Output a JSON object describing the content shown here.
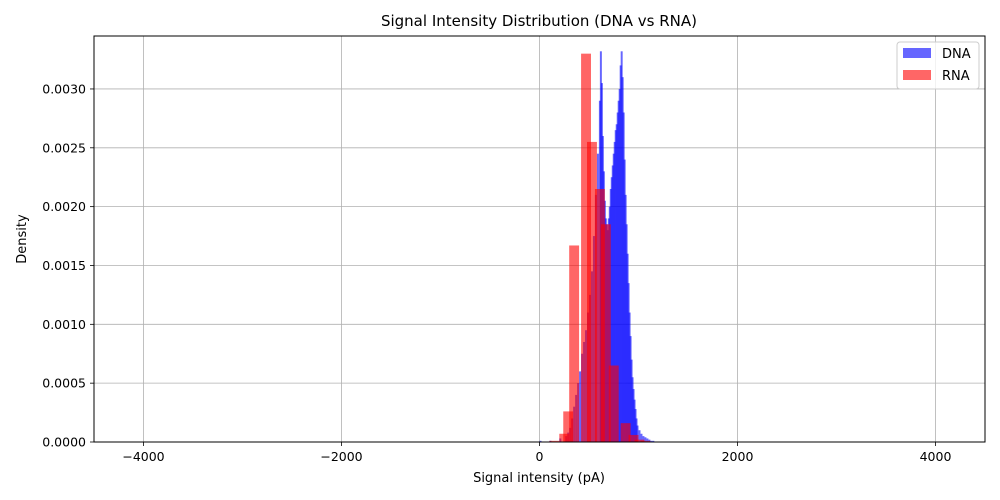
{
  "chart_data": {
    "type": "bar",
    "title": "Signal Intensity Distribution (DNA vs RNA)",
    "xlabel": "Signal intensity (pA)",
    "ylabel": "Density",
    "xlim": [
      -4500,
      4500
    ],
    "ylim": [
      0,
      0.00345
    ],
    "x_ticks": [
      -4000,
      -2000,
      0,
      2000,
      4000
    ],
    "x_tick_labels": [
      "−4000",
      "−2000",
      "0",
      "2000",
      "4000"
    ],
    "y_ticks": [
      0,
      0.0005,
      0.001,
      0.0015,
      0.002,
      0.0025,
      0.003
    ],
    "y_tick_labels": [
      "0.0000",
      "0.0005",
      "0.0010",
      "0.0015",
      "0.0020",
      "0.0025",
      "0.0030"
    ],
    "grid": true,
    "legend_position": "top-right",
    "series": [
      {
        "name": "DNA",
        "color": "#0000ff",
        "opacity": 0.6,
        "bin_width": 20,
        "bins": [
          [
            0,
            1e-05
          ],
          [
            100,
            1e-05
          ],
          [
            200,
            3e-05
          ],
          [
            260,
            5e-05
          ],
          [
            280,
            8e-05
          ],
          [
            300,
            0.00012
          ],
          [
            320,
            0.0002
          ],
          [
            340,
            0.0003
          ],
          [
            360,
            0.0004
          ],
          [
            380,
            0.0005
          ],
          [
            400,
            0.0006
          ],
          [
            420,
            0.00075
          ],
          [
            440,
            0.00085
          ],
          [
            460,
            0.00095
          ],
          [
            480,
            0.0011
          ],
          [
            500,
            0.00125
          ],
          [
            520,
            0.00145
          ],
          [
            540,
            0.00175
          ],
          [
            560,
            0.0021
          ],
          [
            580,
            0.00245
          ],
          [
            600,
            0.0029
          ],
          [
            610,
            0.00332
          ],
          [
            620,
            0.00305
          ],
          [
            630,
            0.0026
          ],
          [
            640,
            0.0023
          ],
          [
            650,
            0.00205
          ],
          [
            660,
            0.0019
          ],
          [
            670,
            0.00185
          ],
          [
            680,
            0.0018
          ],
          [
            690,
            0.0019
          ],
          [
            700,
            0.002
          ],
          [
            710,
            0.00215
          ],
          [
            720,
            0.00225
          ],
          [
            730,
            0.00235
          ],
          [
            740,
            0.00245
          ],
          [
            750,
            0.00255
          ],
          [
            760,
            0.00265
          ],
          [
            770,
            0.0027
          ],
          [
            780,
            0.0028
          ],
          [
            790,
            0.0029
          ],
          [
            800,
            0.003
          ],
          [
            810,
            0.0032
          ],
          [
            820,
            0.00332
          ],
          [
            830,
            0.0031
          ],
          [
            840,
            0.0028
          ],
          [
            850,
            0.0024
          ],
          [
            860,
            0.0021
          ],
          [
            870,
            0.00185
          ],
          [
            880,
            0.0016
          ],
          [
            890,
            0.00135
          ],
          [
            900,
            0.0011
          ],
          [
            910,
            0.0009
          ],
          [
            920,
            0.0007
          ],
          [
            930,
            0.00055
          ],
          [
            940,
            0.00045
          ],
          [
            950,
            0.00036
          ],
          [
            960,
            0.00028
          ],
          [
            970,
            0.0002
          ],
          [
            980,
            0.00014
          ],
          [
            1000,
            0.0001
          ],
          [
            1020,
            7e-05
          ],
          [
            1040,
            5e-05
          ],
          [
            1060,
            4e-05
          ],
          [
            1080,
            3e-05
          ],
          [
            1100,
            2e-05
          ],
          [
            1120,
            1e-05
          ],
          [
            1140,
            1e-05
          ]
        ]
      },
      {
        "name": "RNA",
        "color": "#ff0000",
        "opacity": 0.6,
        "bin_width": 100,
        "bins": [
          [
            100,
            1e-05
          ],
          [
            200,
            7e-05
          ],
          [
            240,
            0.00026
          ],
          [
            300,
            0.00167
          ],
          [
            420,
            0.0033
          ],
          [
            480,
            0.00255
          ],
          [
            560,
            0.00215
          ],
          [
            620,
            0.00185
          ],
          [
            700,
            0.00065
          ],
          [
            820,
            0.00016
          ],
          [
            900,
            6e-05
          ],
          [
            960,
            2e-05
          ],
          [
            1020,
            1e-05
          ]
        ]
      }
    ]
  }
}
